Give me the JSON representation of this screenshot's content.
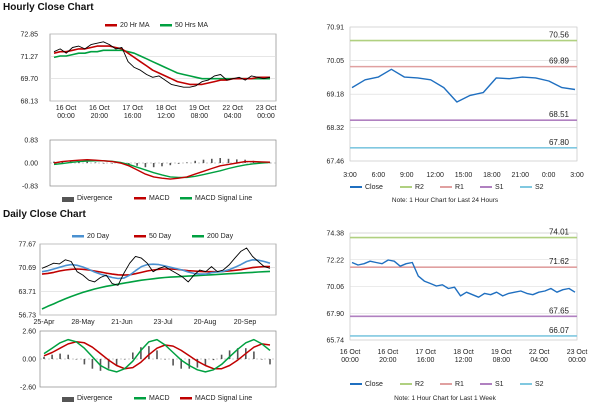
{
  "sections": {
    "hourly_title": "Hourly Close Chart",
    "daily_title": "Daily Close Chart"
  },
  "chart_data": [
    {
      "id": "hourly_price",
      "type": "line",
      "x_ticks": [
        "16 Oct 00:00",
        "16 Oct 20:00",
        "17 Oct 16:00",
        "18 Oct 12:00",
        "19 Oct 08:00",
        "22 Oct 04:00",
        "23 Oct 00:00"
      ],
      "ylim": [
        68.13,
        72.85
      ],
      "y_ticks": [
        72.85,
        71.27,
        69.7,
        68.13
      ],
      "legend": [
        "20 Hr MA",
        "50 Hrs MA"
      ],
      "colors": {
        "price": "#000000",
        "ma20": "#c00000",
        "ma50": "#00a040"
      },
      "series": [
        {
          "name": "price",
          "values": [
            71.6,
            71.8,
            71.5,
            71.9,
            72.0,
            71.8,
            72.1,
            72.2,
            72.3,
            72.1,
            71.8,
            71.9,
            70.9,
            70.5,
            70.3,
            70.0,
            69.8,
            69.9,
            69.6,
            69.3,
            69.2,
            69.1,
            69.1,
            69.2,
            69.5,
            69.6,
            69.9,
            70.0,
            69.6,
            69.7,
            69.8,
            69.6,
            69.9,
            69.8,
            69.7,
            69.8
          ]
        },
        {
          "name": "20 Hr MA",
          "values": [
            71.5,
            71.6,
            71.6,
            71.7,
            71.8,
            71.8,
            71.9,
            72.0,
            72.0,
            72.0,
            71.9,
            71.8,
            71.5,
            71.2,
            70.9,
            70.6,
            70.3,
            70.1,
            69.9,
            69.7,
            69.5,
            69.4,
            69.3,
            69.3,
            69.3,
            69.4,
            69.5,
            69.6,
            69.6,
            69.7,
            69.7,
            69.7,
            69.7,
            69.8,
            69.8,
            69.8
          ]
        },
        {
          "name": "50 Hrs MA",
          "values": [
            71.2,
            71.3,
            71.3,
            71.4,
            71.5,
            71.5,
            71.6,
            71.6,
            71.7,
            71.7,
            71.7,
            71.7,
            71.6,
            71.5,
            71.3,
            71.1,
            70.9,
            70.7,
            70.5,
            70.3,
            70.1,
            70.0,
            69.9,
            69.8,
            69.7,
            69.7,
            69.7,
            69.7,
            69.7,
            69.7,
            69.7,
            69.7,
            69.7,
            69.7,
            69.7,
            69.7
          ]
        }
      ]
    },
    {
      "id": "hourly_macd",
      "type": "line",
      "ylim": [
        -0.83,
        0.83
      ],
      "y_ticks": [
        0.83,
        0.0,
        -0.83
      ],
      "legend": [
        "Divergence",
        "MACD",
        "MACD Signal Line"
      ],
      "colors": {
        "divergence": "#555555",
        "macd": "#c00000",
        "signal": "#00a040"
      },
      "series": [
        {
          "name": "MACD",
          "values": [
            0.0,
            0.05,
            0.08,
            0.1,
            0.12,
            0.1,
            0.08,
            0.05,
            0.0,
            -0.1,
            -0.25,
            -0.4,
            -0.5,
            -0.55,
            -0.58,
            -0.55,
            -0.5,
            -0.4,
            -0.3,
            -0.2,
            -0.1,
            -0.05,
            0.0,
            0.05,
            0.05,
            0.04,
            0.03
          ]
        },
        {
          "name": "MACD Signal Line",
          "values": [
            -0.05,
            -0.02,
            0.02,
            0.05,
            0.07,
            0.08,
            0.08,
            0.06,
            0.02,
            -0.05,
            -0.15,
            -0.25,
            -0.35,
            -0.43,
            -0.5,
            -0.52,
            -0.52,
            -0.48,
            -0.42,
            -0.35,
            -0.28,
            -0.2,
            -0.13,
            -0.07,
            -0.03,
            0.0,
            0.02
          ]
        },
        {
          "name": "Divergence",
          "values": [
            0.05,
            0.07,
            0.06,
            0.05,
            0.05,
            0.02,
            0.0,
            -0.01,
            -0.02,
            -0.05,
            -0.1,
            -0.15,
            -0.15,
            -0.12,
            -0.08,
            -0.03,
            0.02,
            0.08,
            0.12,
            0.15,
            0.18,
            0.15,
            0.13,
            0.12,
            0.08,
            0.04,
            0.01
          ]
        }
      ]
    },
    {
      "id": "hourly_levels",
      "type": "line",
      "x_ticks": [
        "3:00",
        "6:00",
        "9:00",
        "12:00",
        "15:00",
        "18:00",
        "21:00",
        "0:00",
        "3:00"
      ],
      "ylim": [
        67.46,
        70.91
      ],
      "y_ticks": [
        70.91,
        70.05,
        69.18,
        68.32,
        67.46
      ],
      "legend": [
        "Close",
        "R2",
        "R1",
        "S1",
        "S2"
      ],
      "colors": {
        "close": "#1f6fc0",
        "R2": "#b0d080",
        "R1": "#e0a0a0",
        "S1": "#b080c0",
        "S2": "#80c8e0"
      },
      "levels": {
        "R2": 70.56,
        "R1": 69.89,
        "S1": 68.51,
        "S2": 67.8
      },
      "level_labels": [
        "70.56",
        "69.89",
        "68.51",
        "67.80"
      ],
      "note": "Note: 1 Hour Chart for Last 24 Hours",
      "series": [
        {
          "name": "Close",
          "values": [
            69.35,
            69.55,
            69.62,
            69.82,
            69.62,
            69.6,
            69.55,
            69.35,
            68.98,
            69.15,
            69.22,
            69.6,
            69.58,
            69.62,
            69.6,
            69.52,
            69.35,
            69.3
          ]
        }
      ]
    },
    {
      "id": "daily_price",
      "type": "line",
      "x_ticks": [
        "25-Apr",
        "28-May",
        "21-Jun",
        "23-Jul",
        "20-Aug",
        "20-Sep"
      ],
      "ylim": [
        56.73,
        77.67
      ],
      "y_ticks": [
        77.67,
        70.69,
        63.71,
        56.73
      ],
      "legend": [
        "20 Day",
        "50 Day",
        "200 Day"
      ],
      "colors": {
        "price": "#000000",
        "d20": "#4a90d0",
        "d50": "#c00000",
        "d200": "#00a040"
      },
      "series": [
        {
          "name": "price",
          "values": [
            70.5,
            71.2,
            72.0,
            71.8,
            73.0,
            72.5,
            69.5,
            68.5,
            67.0,
            66.5,
            67.8,
            68.5,
            66.0,
            65.5,
            69.0,
            72.0,
            74.0,
            73.5,
            72.0,
            69.5,
            70.5,
            71.0,
            70.0,
            69.0,
            68.0,
            66.5,
            68.5,
            70.0,
            69.5,
            71.0,
            69.5,
            70.0,
            71.5,
            73.5,
            75.5,
            76.5,
            74.0,
            72.5,
            71.0,
            70.5
          ]
        },
        {
          "name": "20 Day",
          "values": [
            69.5,
            69.8,
            70.3,
            70.8,
            71.3,
            71.6,
            71.4,
            70.9,
            70.2,
            69.4,
            68.8,
            68.3,
            67.8,
            67.5,
            67.6,
            68.5,
            69.8,
            71.0,
            71.6,
            71.7,
            71.6,
            71.2,
            70.8,
            70.4,
            70.0,
            69.4,
            69.0,
            68.8,
            68.8,
            69.2,
            69.4,
            69.6,
            70.1,
            70.8,
            71.6,
            72.5,
            73.0,
            72.9,
            72.5,
            72.0
          ]
        },
        {
          "name": "50 Day",
          "values": [
            68.8,
            69.0,
            69.3,
            69.7,
            70.0,
            70.2,
            70.3,
            70.2,
            70.0,
            69.7,
            69.4,
            69.1,
            68.8,
            68.6,
            68.5,
            68.6,
            68.9,
            69.3,
            69.7,
            70.0,
            70.2,
            70.3,
            70.3,
            70.2,
            70.0,
            69.8,
            69.7,
            69.6,
            69.5,
            69.5,
            69.5,
            69.6,
            69.7,
            69.9,
            70.1,
            70.4,
            70.7,
            70.9,
            71.0,
            71.0
          ]
        },
        {
          "name": "200 Day",
          "values": [
            58.5,
            59.3,
            60.0,
            60.8,
            61.5,
            62.2,
            62.8,
            63.4,
            63.9,
            64.4,
            64.8,
            65.2,
            65.5,
            65.8,
            66.1,
            66.4,
            66.7,
            67.0,
            67.2,
            67.4,
            67.6,
            67.8,
            67.9,
            68.0,
            68.1,
            68.2,
            68.3,
            68.4,
            68.5,
            68.6,
            68.7,
            68.8,
            68.9,
            69.0,
            69.1,
            69.2,
            69.3,
            69.4,
            69.5,
            69.6
          ]
        }
      ]
    },
    {
      "id": "daily_macd",
      "type": "line",
      "ylim": [
        -2.6,
        2.6
      ],
      "y_ticks": [
        2.6,
        0.0,
        -2.6
      ],
      "legend": [
        "Divergence",
        "MACD",
        "MACD Signal Line"
      ],
      "colors": {
        "divergence": "#555555",
        "macd": "#00a040",
        "signal": "#c00000"
      },
      "series": [
        {
          "name": "MACD",
          "values": [
            0.5,
            1.0,
            1.5,
            1.8,
            1.6,
            1.0,
            0.2,
            -0.6,
            -1.0,
            -1.2,
            -0.9,
            -0.2,
            0.8,
            1.6,
            1.8,
            1.3,
            0.6,
            -0.1,
            -0.6,
            -1.0,
            -1.2,
            -1.0,
            -0.5,
            0.2,
            0.9,
            1.5,
            1.8,
            1.4,
            0.8
          ]
        },
        {
          "name": "MACD Signal Line",
          "values": [
            0.3,
            0.6,
            1.0,
            1.4,
            1.6,
            1.5,
            1.1,
            0.5,
            -0.1,
            -0.6,
            -0.9,
            -0.8,
            -0.3,
            0.4,
            1.0,
            1.3,
            1.2,
            0.8,
            0.3,
            -0.2,
            -0.6,
            -0.9,
            -0.9,
            -0.6,
            -0.1,
            0.5,
            1.1,
            1.4,
            1.3
          ]
        },
        {
          "name": "Divergence",
          "values": [
            0.2,
            0.4,
            0.5,
            0.4,
            0.0,
            -0.5,
            -0.9,
            -1.1,
            -0.9,
            -0.6,
            0.0,
            0.6,
            1.1,
            1.2,
            0.8,
            0.0,
            -0.6,
            -0.9,
            -0.9,
            -0.8,
            -0.6,
            -0.1,
            0.4,
            0.8,
            1.0,
            1.0,
            0.7,
            0.0,
            -0.5
          ]
        }
      ]
    },
    {
      "id": "daily_levels",
      "type": "line",
      "x_ticks": [
        "16 Oct 00:00",
        "16 Oct 20:00",
        "17 Oct 16:00",
        "18 Oct 12:00",
        "19 Oct 08:00",
        "22 Oct 04:00",
        "23 Oct 00:00"
      ],
      "ylim": [
        65.74,
        74.38
      ],
      "y_ticks": [
        74.38,
        72.22,
        70.06,
        67.9,
        65.74
      ],
      "legend": [
        "Close",
        "R2",
        "R1",
        "S1",
        "S2"
      ],
      "colors": {
        "close": "#1f6fc0",
        "R2": "#b0d080",
        "R1": "#e0a0a0",
        "S1": "#b080c0",
        "S2": "#80c8e0"
      },
      "levels": {
        "R2": 74.01,
        "R1": 71.62,
        "S1": 67.65,
        "S2": 66.07
      },
      "level_labels": [
        "74.01",
        "71.62",
        "67.65",
        "66.07"
      ],
      "note": "Note: 1 Hour Chart for Last 1 Week",
      "series": [
        {
          "name": "Close",
          "values": [
            72.0,
            71.8,
            71.9,
            72.1,
            72.0,
            71.9,
            72.2,
            72.1,
            71.7,
            71.9,
            72.0,
            70.9,
            70.5,
            70.3,
            70.1,
            70.2,
            69.9,
            70.0,
            69.3,
            69.6,
            69.4,
            69.2,
            69.5,
            69.4,
            69.6,
            69.3,
            69.5,
            69.6,
            69.7,
            69.5,
            69.4,
            69.6,
            69.7,
            69.9,
            69.6,
            69.8,
            69.9,
            69.6
          ]
        }
      ]
    }
  ]
}
